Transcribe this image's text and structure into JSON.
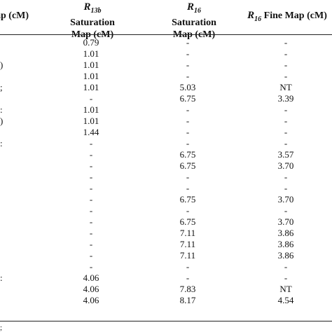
{
  "header": {
    "col1": "Map (cM)",
    "col1_visible": "ap (cM)",
    "col2_sym": "R",
    "col2_sub": "13b",
    "col2_l1": "Saturation",
    "col2_l2": "Map (cM)",
    "col3_sym": "R",
    "col3_sub": "16",
    "col3_l1": "Saturation",
    "col3_l2": "Map (cM)",
    "col4_sym": "R",
    "col4_sub": "16",
    "col4_rest": "Fine Map (cM)"
  },
  "rows": [
    {
      "c1": "",
      "c2": "0.79",
      "c3": "-",
      "c4": "-"
    },
    {
      "c1": "",
      "c2": "1.01",
      "c3": "-",
      "c4": "-"
    },
    {
      "c1": ")",
      "c2": "1.01",
      "c3": "-",
      "c4": "-"
    },
    {
      "c1": "",
      "c2": "1.01",
      "c3": "-",
      "c4": "-"
    },
    {
      "c1": ";",
      "c2": "1.01",
      "c3": "5.03",
      "c4": "NT"
    },
    {
      "c1": "",
      "c2": "-",
      "c3": "6.75",
      "c4": "3.39"
    },
    {
      "c1": ":",
      "c2": "1.01",
      "c3": "-",
      "c4": "-"
    },
    {
      "c1": ")",
      "c2": "1.01",
      "c3": "-",
      "c4": "-"
    },
    {
      "c1": "",
      "c2": "1.44",
      "c3": "-",
      "c4": "-"
    },
    {
      "c1": ":",
      "c2": "-",
      "c3": "-",
      "c4": "-"
    },
    {
      "c1": "",
      "c2": "-",
      "c3": "6.75",
      "c4": "3.57"
    },
    {
      "c1": "",
      "c2": "-",
      "c3": "6.75",
      "c4": "3.70"
    },
    {
      "c1": "",
      "c2": "-",
      "c3": "-",
      "c4": "-"
    },
    {
      "c1": "",
      "c2": "-",
      "c3": "-",
      "c4": "-"
    },
    {
      "c1": "",
      "c2": "-",
      "c3": "6.75",
      "c4": "3.70"
    },
    {
      "c1": "",
      "c2": "-",
      "c3": "-",
      "c4": "-"
    },
    {
      "c1": "",
      "c2": "-",
      "c3": "6.75",
      "c4": "3.70"
    },
    {
      "c1": "",
      "c2": "-",
      "c3": "7.11",
      "c4": "3.86"
    },
    {
      "c1": "",
      "c2": "-",
      "c3": "7.11",
      "c4": "3.86"
    },
    {
      "c1": "",
      "c2": "-",
      "c3": "7.11",
      "c4": "3.86"
    },
    {
      "c1": "",
      "c2": "-",
      "c3": "-",
      "c4": "-"
    },
    {
      "c1": ":",
      "c2": "4.06",
      "c3": "-",
      "c4": "-"
    },
    {
      "c1": "",
      "c2": "4.06",
      "c3": "7.83",
      "c4": "NT"
    },
    {
      "c1": "",
      "c2": "4.06",
      "c3": "8.17",
      "c4": "4.54"
    }
  ],
  "footer_mark": ";"
}
